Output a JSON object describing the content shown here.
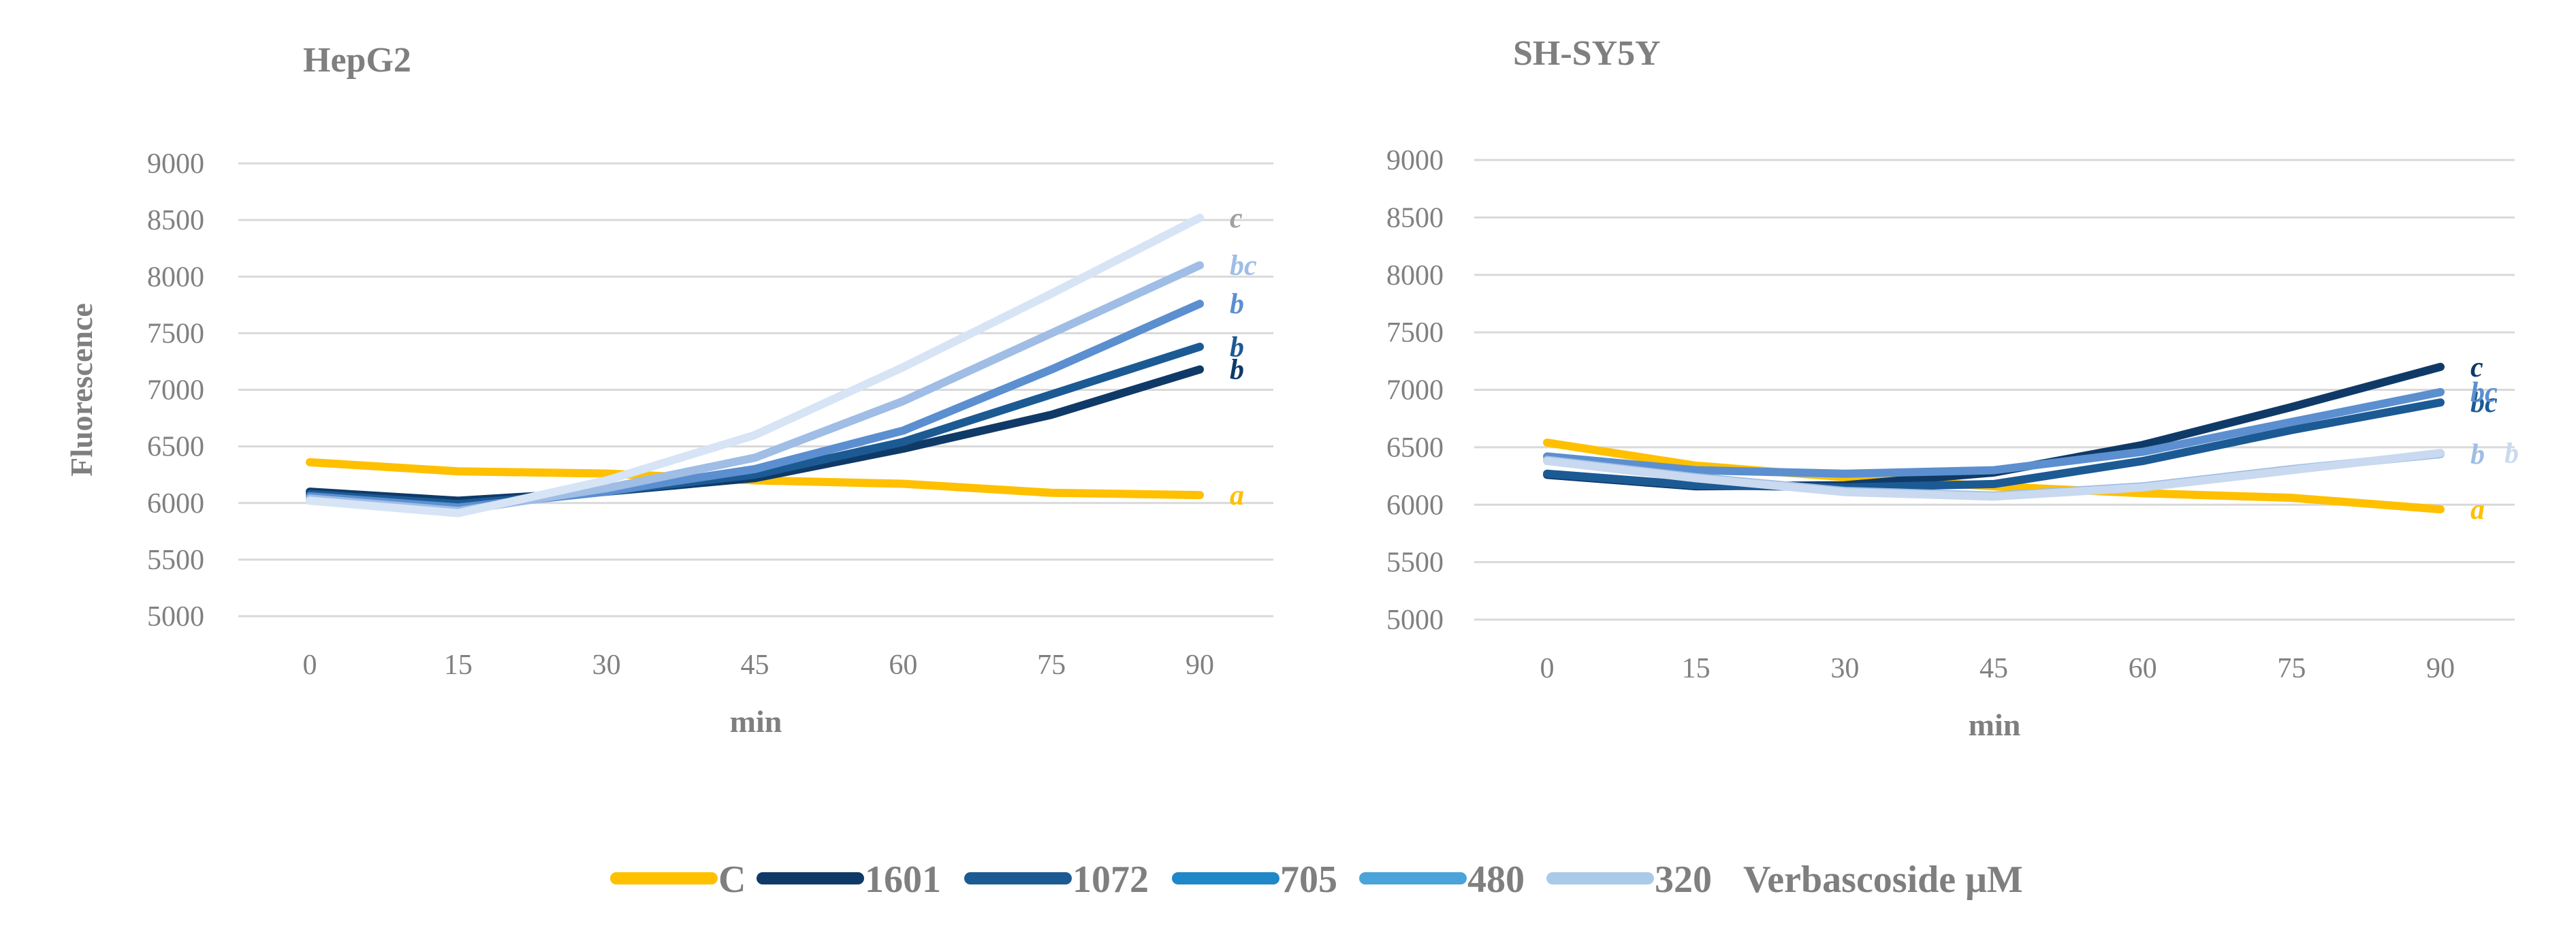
{
  "chart_data": [
    {
      "type": "line",
      "title": "HepG2",
      "xlabel": "min",
      "ylabel": "Fluorescence",
      "x": [
        0,
        15,
        30,
        45,
        60,
        75,
        90
      ],
      "ylim": [
        5000,
        9000
      ],
      "yticks": [
        5000,
        5500,
        6000,
        6500,
        7000,
        7500,
        8000,
        8500,
        9000
      ],
      "grid": true,
      "series": [
        {
          "name": "C",
          "values": [
            6360,
            6280,
            6260,
            6200,
            6170,
            6090,
            6070
          ],
          "color": "#ffc000",
          "label": "a"
        },
        {
          "name": "1601",
          "values": [
            6100,
            6020,
            6100,
            6220,
            6480,
            6780,
            7180
          ],
          "color": "#0f3a68",
          "label": "b"
        },
        {
          "name": "1072",
          "values": [
            6080,
            5990,
            6100,
            6250,
            6540,
            6960,
            7380
          ],
          "color": "#1c5a94",
          "label": "b"
        },
        {
          "name": "705",
          "values": [
            6060,
            5960,
            6100,
            6300,
            6640,
            7180,
            7760
          ],
          "color": "#5b8fd0",
          "label": "b"
        },
        {
          "name": "480",
          "values": [
            6040,
            5930,
            6130,
            6400,
            6900,
            7500,
            8100
          ],
          "color": "#9fbde5",
          "label": "bc"
        },
        {
          "name": "320",
          "values": [
            6020,
            5910,
            6200,
            6600,
            7200,
            7850,
            8520
          ],
          "color": "#d6e4f5",
          "label": "c"
        }
      ]
    },
    {
      "type": "line",
      "title": "SH-SY5Y",
      "xlabel": "min",
      "ylabel": "",
      "x": [
        0,
        15,
        30,
        45,
        60,
        75,
        90
      ],
      "ylim": [
        5000,
        9000
      ],
      "yticks": [
        5000,
        5500,
        6000,
        6500,
        7000,
        7500,
        8000,
        8500,
        9000
      ],
      "grid": true,
      "series": [
        {
          "name": "C",
          "values": [
            6540,
            6340,
            6240,
            6160,
            6100,
            6060,
            5960
          ],
          "color": "#ffc000",
          "label": "a"
        },
        {
          "name": "1601",
          "values": [
            6260,
            6160,
            6170,
            6280,
            6520,
            6850,
            7200
          ],
          "color": "#0f3a68",
          "label": "c"
        },
        {
          "name": "1072",
          "values": [
            6270,
            6170,
            6150,
            6180,
            6380,
            6650,
            6890
          ],
          "color": "#1c5a94",
          "label": "bc"
        },
        {
          "name": "705",
          "values": [
            6420,
            6300,
            6270,
            6300,
            6460,
            6720,
            6980
          ],
          "color": "#5b8fd0",
          "label": "bc"
        },
        {
          "name": "480",
          "values": [
            6390,
            6240,
            6120,
            6080,
            6160,
            6310,
            6440
          ],
          "color": "#9fbde5",
          "label": "b"
        },
        {
          "name": "320",
          "values": [
            6380,
            6230,
            6110,
            6070,
            6150,
            6300,
            6450
          ],
          "color": "#c9d9ef",
          "label": "b"
        }
      ]
    }
  ],
  "legend": {
    "items": [
      {
        "label": "C",
        "color": "#ffc000"
      },
      {
        "label": "1601",
        "color": "#0f3a68"
      },
      {
        "label": "1072",
        "color": "#1c5a94"
      },
      {
        "label": "705",
        "color": "#1e88c8"
      },
      {
        "label": "480",
        "color": "#4aa3d9"
      },
      {
        "label": "320",
        "color": "#a9cbe9"
      }
    ],
    "suffix": "Verbascoside μM"
  }
}
